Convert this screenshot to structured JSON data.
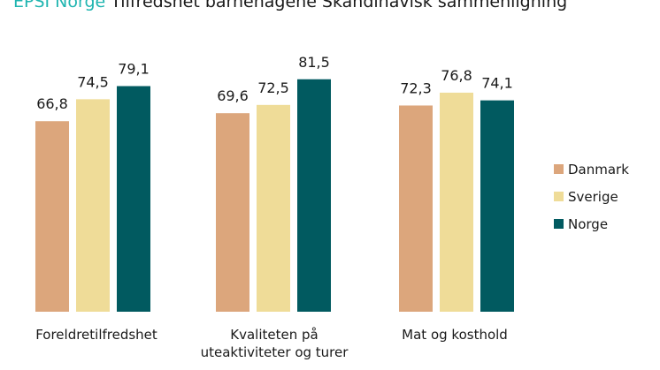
{
  "title": {
    "brand": "EPSI Norge",
    "text": "Tilfredshet barnehagene Skandinavisk sammenligning"
  },
  "chart_data": {
    "type": "bar",
    "categories": [
      [
        "Foreldretilfredshet"
      ],
      [
        "Kvaliteten på",
        "uteaktiviteter og turer"
      ],
      [
        "Mat og kosthold"
      ]
    ],
    "series": [
      {
        "name": "Danmark",
        "color": "#dca67c",
        "values": [
          66.8,
          69.6,
          72.3
        ]
      },
      {
        "name": "Sverige",
        "color": "#efdc98",
        "values": [
          74.5,
          72.5,
          76.8
        ]
      },
      {
        "name": "Norge",
        "color": "#015a60",
        "values": [
          79.1,
          81.5,
          74.1
        ]
      }
    ],
    "value_format": "decimal-comma",
    "legend_position": "right",
    "grid": false
  }
}
